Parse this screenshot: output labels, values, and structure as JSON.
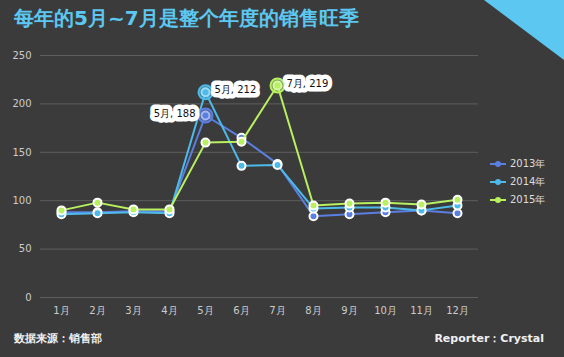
{
  "chart_data": {
    "type": "line",
    "title": "每年的5月~7月是整个年度的销售旺季",
    "categories": [
      "1月",
      "2月",
      "3月",
      "4月",
      "5月",
      "6月",
      "7月",
      "8月",
      "9月",
      "10月",
      "11月",
      "12月"
    ],
    "series": [
      {
        "name": "2013年",
        "color": "#5b7fe0",
        "values": [
          88,
          88,
          89,
          89,
          188,
          165,
          138,
          84,
          86,
          88,
          90,
          87
        ]
      },
      {
        "name": "2014年",
        "color": "#4dbbea",
        "values": [
          86,
          87,
          88,
          87,
          212,
          136,
          137,
          92,
          93,
          93,
          90,
          95
        ]
      },
      {
        "name": "2015年",
        "color": "#b8f060",
        "values": [
          90,
          98,
          91,
          91,
          160,
          161,
          219,
          95,
          97,
          98,
          96,
          101
        ]
      }
    ],
    "annotations": [
      {
        "text": "5月, 188",
        "series": "2013年",
        "category": "5月"
      },
      {
        "text": "5月, 212",
        "series": "2014年",
        "category": "5月"
      },
      {
        "text": "7月, 219",
        "series": "2015年",
        "category": "7月"
      }
    ],
    "ylim": [
      0,
      250
    ],
    "yticks": [
      0,
      50,
      100,
      150,
      200,
      250
    ],
    "grid": true,
    "legend": "right",
    "marker": "circle",
    "source": "数据来源：销售部",
    "credit": "Reporter：Crystal"
  }
}
